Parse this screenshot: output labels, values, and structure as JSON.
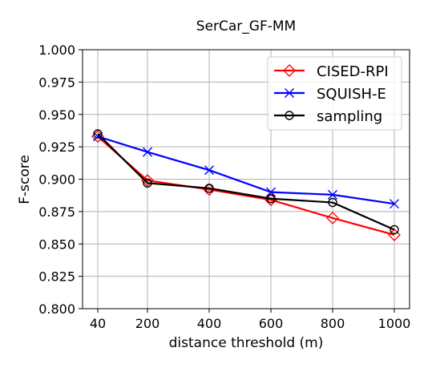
{
  "chart_data": {
    "type": "line",
    "title": "SerCar_GF-MM",
    "xlabel": "distance threshold (m)",
    "ylabel": "F-score",
    "categories": [
      "40",
      "200",
      "400",
      "600",
      "800",
      "1000"
    ],
    "ylim": [
      0.8,
      1.0
    ],
    "yticks": [
      "0.800",
      "0.825",
      "0.850",
      "0.875",
      "0.900",
      "0.925",
      "0.950",
      "0.975",
      "1.000"
    ],
    "grid": true,
    "legend_position": "top-right",
    "series": [
      {
        "name": "CISED-RPI",
        "color": "#ff0000",
        "marker": "diamond",
        "values": [
          0.933,
          0.899,
          0.892,
          0.884,
          0.87,
          0.857
        ]
      },
      {
        "name": "SQUISH-E",
        "color": "#0000ff",
        "marker": "x",
        "values": [
          0.933,
          0.921,
          0.907,
          0.89,
          0.888,
          0.881
        ]
      },
      {
        "name": "sampling",
        "color": "#000000",
        "marker": "circle",
        "values": [
          0.935,
          0.897,
          0.893,
          0.885,
          0.882,
          0.861
        ]
      }
    ]
  }
}
